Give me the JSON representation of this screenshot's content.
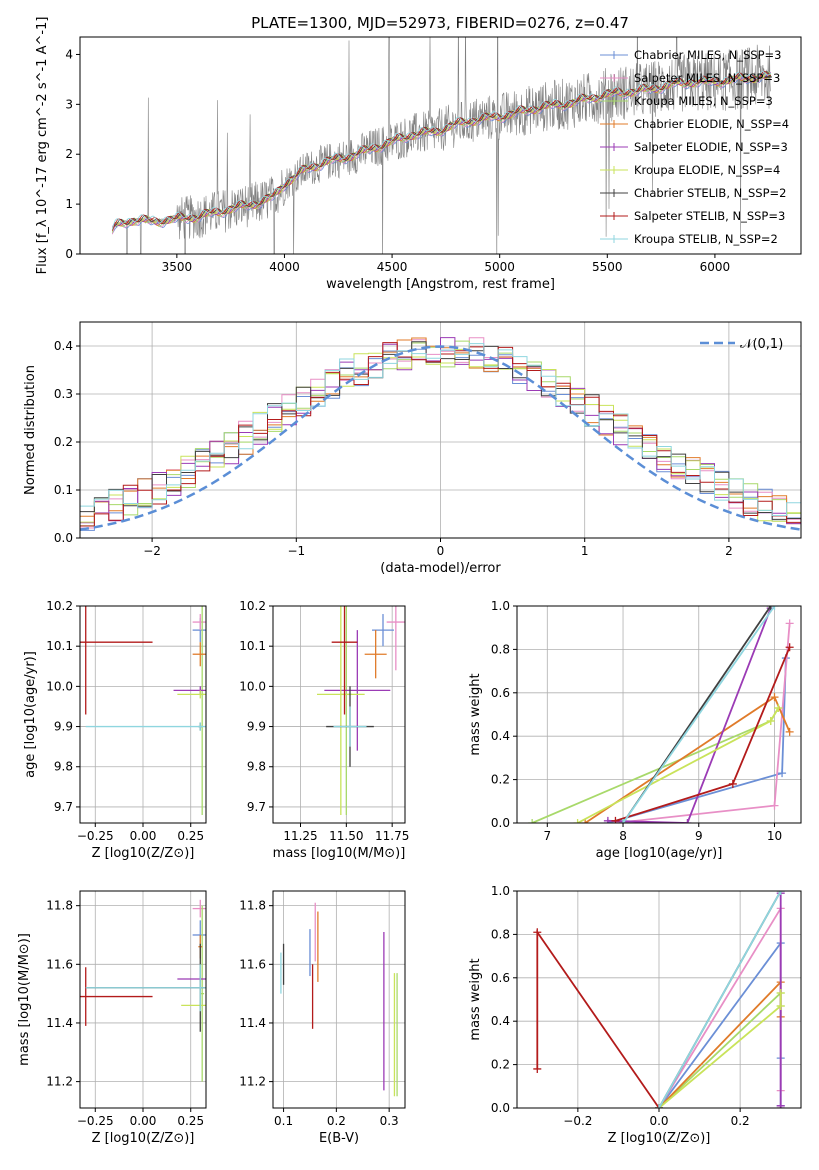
{
  "figure_title": "PLATE=1300, MJD=52973, FIBERID=0276, z=0.47",
  "colors": {
    "chabrier_miles": "#6b8fd6",
    "salpeter_miles": "#e88fc6",
    "kroupa_miles": "#a8d96a",
    "chabrier_elodie": "#e07b2a",
    "salpeter_elodie": "#9b3bb5",
    "kroupa_elodie": "#c9e35a",
    "chabrier_stelib": "#404040",
    "salpeter_stelib": "#b31b1b",
    "kroupa_stelib": "#8fd6df",
    "data": "#808080",
    "normal": "#5b8ed6"
  },
  "chart_data": [
    {
      "id": "spectrum",
      "type": "line",
      "xlabel": "wavelength [Angstrom, rest frame]",
      "ylabel": "Flux [f_λ 10^-17 erg cm^-2 s^-1 A^-1]",
      "xlim": [
        3050,
        6400
      ],
      "ylim": [
        0,
        4.35
      ],
      "xticks": [
        3500,
        4000,
        4500,
        5000,
        5500,
        6000
      ],
      "yticks": [
        0,
        1,
        2,
        3,
        4
      ],
      "grid": false,
      "legend_position": "top-right",
      "legend": [
        "Chabrier MILES, N_SSP=3",
        "Salpeter MILES, N_SSP=3",
        "Kroupa MILES, N_SSP=3",
        "Chabrier ELODIE, N_SSP=4",
        "Salpeter ELODIE, N_SSP=3",
        "Kroupa ELODIE, N_SSP=4",
        "Chabrier STELIB, N_SSP=2",
        "Salpeter STELIB, N_SSP=3",
        "Kroupa STELIB, N_SSP=2"
      ],
      "model_continuum": {
        "x": [
          3200,
          3210,
          3250,
          3300,
          3400,
          3500,
          3600,
          3700,
          3800,
          3900,
          3950,
          4000,
          4100,
          4200,
          4300,
          4400,
          4500,
          4600,
          4700,
          4800,
          4900,
          5000,
          5100,
          5200,
          5300,
          5400,
          5500,
          5600,
          5700,
          5800,
          5900,
          6000,
          6100,
          6200,
          6260
        ],
        "y": [
          0.45,
          0.55,
          0.62,
          0.68,
          0.65,
          0.7,
          0.75,
          0.85,
          0.95,
          1.05,
          1.15,
          1.4,
          1.7,
          1.85,
          1.95,
          2.1,
          2.25,
          2.4,
          2.45,
          2.6,
          2.7,
          2.75,
          2.85,
          2.95,
          3.0,
          3.1,
          3.2,
          3.25,
          3.3,
          3.4,
          3.45,
          3.45,
          3.5,
          3.55,
          3.55
        ]
      }
    },
    {
      "id": "residual_histogram",
      "type": "histogram",
      "xlabel": "(data-model)/error",
      "ylabel": "Normed distribution",
      "xlim": [
        -2.5,
        2.5
      ],
      "ylim": [
        0,
        0.45
      ],
      "xticks": [
        -2,
        -1,
        0,
        1,
        2
      ],
      "yticks": [
        0.0,
        0.1,
        0.2,
        0.3,
        0.4
      ],
      "grid": true,
      "legend_position": "top-right",
      "legend": [
        "𝒩(0,1)"
      ],
      "normal_curve": {
        "mean": 0,
        "sigma": 1
      },
      "bin_width": 0.1
    },
    {
      "id": "age_vs_Z",
      "type": "scatter",
      "xlabel": "Z [log10(Z/Z⊙)]",
      "ylabel": "age [log10(age/yr)]",
      "xlim": [
        -0.33,
        0.33
      ],
      "ylim": [
        9.66,
        10.2
      ],
      "xticks": [
        -0.25,
        0.0,
        0.25
      ],
      "yticks": [
        9.7,
        9.8,
        9.9,
        10.0,
        10.1,
        10.2
      ],
      "points": [
        {
          "model": "chabrier_miles",
          "x": 0.3,
          "y": 10.14,
          "xerr": 0.04,
          "yerr": 0.03
        },
        {
          "model": "salpeter_miles",
          "x": 0.3,
          "y": 10.16,
          "xerr": 0.04,
          "yerr": 0.02
        },
        {
          "model": "kroupa_miles",
          "x": 0.31,
          "y": 9.98,
          "xerr": 0.01,
          "yerr": 0.3
        },
        {
          "model": "chabrier_elodie",
          "x": 0.3,
          "y": 10.08,
          "xerr": 0.04,
          "yerr": 0.03
        },
        {
          "model": "salpeter_elodie",
          "x": 0.3,
          "y": 9.99,
          "xerr": 0.14,
          "yerr": 0.01
        },
        {
          "model": "kroupa_elodie",
          "x": 0.3,
          "y": 9.98,
          "xerr": 0.12,
          "yerr": 0.01
        },
        {
          "model": "chabrier_stelib",
          "x": 0.3,
          "y": 9.9,
          "xerr": 0.01,
          "yerr": 0.01
        },
        {
          "model": "salpeter_stelib",
          "x": -0.3,
          "y": 10.11,
          "xerr": 0.35,
          "yerr": 0.18
        },
        {
          "model": "kroupa_stelib",
          "x": 0.3,
          "y": 9.9,
          "xerr": 0.6,
          "yerr": 0.01
        }
      ]
    },
    {
      "id": "age_vs_mass",
      "type": "scatter",
      "xlabel": "mass [log10(M/M⊙)]",
      "ylabel": "",
      "xlim": [
        11.1,
        11.82
      ],
      "ylim": [
        9.66,
        10.2
      ],
      "xticks": [
        11.25,
        11.5,
        11.75
      ],
      "yticks": [
        9.7,
        9.8,
        9.9,
        10.0,
        10.1,
        10.2
      ],
      "points": [
        {
          "model": "chabrier_miles",
          "x": 11.7,
          "y": 10.14,
          "xerr": 0.06,
          "yerr": 0.04
        },
        {
          "model": "salpeter_miles",
          "x": 11.77,
          "y": 10.16,
          "xerr": 0.05,
          "yerr": 0.12
        },
        {
          "model": "kroupa_miles",
          "x": 11.5,
          "y": 9.98,
          "xerr": 0.03,
          "yerr": 0.3
        },
        {
          "model": "chabrier_elodie",
          "x": 11.66,
          "y": 10.08,
          "xerr": 0.06,
          "yerr": 0.06
        },
        {
          "model": "salpeter_elodie",
          "x": 11.56,
          "y": 9.99,
          "xerr": 0.18,
          "yerr": 0.15
        },
        {
          "model": "kroupa_elodie",
          "x": 11.47,
          "y": 9.98,
          "xerr": 0.13,
          "yerr": 0.3
        },
        {
          "model": "chabrier_stelib",
          "x": 11.52,
          "y": 9.9,
          "xerr": 0.13,
          "yerr": 0.1
        },
        {
          "model": "salpeter_stelib",
          "x": 11.49,
          "y": 10.11,
          "xerr": 0.07,
          "yerr": 0.18
        },
        {
          "model": "kroupa_stelib",
          "x": 11.52,
          "y": 9.9,
          "xerr": 0.09,
          "yerr": 0.05
        }
      ]
    },
    {
      "id": "weight_vs_age",
      "type": "line",
      "xlabel": "age [log10(age/yr)]",
      "ylabel": "mass weight",
      "xlim": [
        6.6,
        10.35
      ],
      "ylim": [
        0,
        1
      ],
      "xticks": [
        7,
        8,
        9,
        10
      ],
      "yticks": [
        0.0,
        0.2,
        0.4,
        0.6,
        0.8,
        1.0
      ],
      "grid": true,
      "series": [
        {
          "model": "chabrier_miles",
          "x": [
            7.8,
            10.1,
            10.15
          ],
          "y": [
            0.0,
            0.23,
            0.76
          ]
        },
        {
          "model": "salpeter_miles",
          "x": [
            7.9,
            10.0,
            10.2
          ],
          "y": [
            0.0,
            0.08,
            0.92
          ]
        },
        {
          "model": "kroupa_miles",
          "x": [
            6.8,
            9.95,
            10.05
          ],
          "y": [
            0.0,
            0.47,
            0.53
          ]
        },
        {
          "model": "chabrier_elodie",
          "x": [
            7.5,
            10.0,
            10.2
          ],
          "y": [
            0.0,
            0.58,
            0.42
          ]
        },
        {
          "model": "salpeter_elodie",
          "x": [
            7.8,
            8.85,
            9.95
          ],
          "y": [
            0.01,
            0.0,
            0.99
          ]
        },
        {
          "model": "kroupa_elodie",
          "x": [
            7.4,
            9.95,
            10.05
          ],
          "y": [
            0.0,
            0.47,
            0.53
          ]
        },
        {
          "model": "chabrier_stelib",
          "x": [
            8.0,
            9.95
          ],
          "y": [
            0.0,
            1.0
          ]
        },
        {
          "model": "salpeter_stelib",
          "x": [
            7.9,
            9.45,
            10.2
          ],
          "y": [
            0.01,
            0.18,
            0.81
          ]
        },
        {
          "model": "kroupa_stelib",
          "x": [
            8.0,
            10.0
          ],
          "y": [
            0.0,
            1.0
          ]
        }
      ]
    },
    {
      "id": "mass_vs_Z",
      "type": "scatter",
      "xlabel": "Z [log10(Z/Z⊙)]",
      "ylabel": "mass [log10(M/M⊙)]",
      "xlim": [
        -0.33,
        0.33
      ],
      "ylim": [
        11.11,
        11.85
      ],
      "xticks": [
        -0.25,
        0.0,
        0.25
      ],
      "yticks": [
        11.2,
        11.4,
        11.6,
        11.8
      ],
      "points": [
        {
          "model": "chabrier_miles",
          "x": 0.3,
          "y": 11.7,
          "xerr": 0.04,
          "yerr": 0.05
        },
        {
          "model": "salpeter_miles",
          "x": 0.3,
          "y": 11.79,
          "xerr": 0.04,
          "yerr": 0.03
        },
        {
          "model": "kroupa_miles",
          "x": 0.31,
          "y": 11.5,
          "xerr": 0.01,
          "yerr": 0.3
        },
        {
          "model": "chabrier_elodie",
          "x": 0.3,
          "y": 11.66,
          "xerr": 0.01,
          "yerr": 0.04
        },
        {
          "model": "salpeter_elodie",
          "x": 0.3,
          "y": 11.55,
          "xerr": 0.12,
          "yerr": 0.01
        },
        {
          "model": "kroupa_elodie",
          "x": 0.3,
          "y": 11.46,
          "xerr": 0.1,
          "yerr": 0.01
        },
        {
          "model": "chabrier_stelib",
          "x": 0.3,
          "y": 11.52,
          "xerr": 0.6,
          "yerr": 0.15
        },
        {
          "model": "salpeter_stelib",
          "x": -0.3,
          "y": 11.49,
          "xerr": 0.35,
          "yerr": 0.1
        },
        {
          "model": "kroupa_stelib",
          "x": 0.3,
          "y": 11.52,
          "xerr": 0.6,
          "yerr": 0.08
        }
      ]
    },
    {
      "id": "mass_vs_ebv",
      "type": "scatter",
      "xlabel": "E(B-V)",
      "ylabel": "",
      "xlim": [
        0.08,
        0.33
      ],
      "ylim": [
        11.11,
        11.85
      ],
      "xticks": [
        0.1,
        0.2,
        0.3
      ],
      "yticks": [
        11.2,
        11.4,
        11.6,
        11.8
      ],
      "points": [
        {
          "model": "chabrier_miles",
          "x": 0.15,
          "y": 11.64,
          "yerr": 0.08
        },
        {
          "model": "salpeter_miles",
          "x": 0.16,
          "y": 11.71,
          "yerr": 0.1
        },
        {
          "model": "kroupa_miles",
          "x": 0.315,
          "y": 11.36,
          "yerr": 0.21
        },
        {
          "model": "chabrier_elodie",
          "x": 0.165,
          "y": 11.66,
          "yerr": 0.12
        },
        {
          "model": "salpeter_elodie",
          "x": 0.29,
          "y": 11.44,
          "yerr": 0.27
        },
        {
          "model": "kroupa_elodie",
          "x": 0.31,
          "y": 11.36,
          "yerr": 0.21
        },
        {
          "model": "chabrier_stelib",
          "x": 0.1,
          "y": 11.6,
          "yerr": 0.07
        },
        {
          "model": "salpeter_stelib",
          "x": 0.155,
          "y": 11.49,
          "yerr": 0.11
        },
        {
          "model": "kroupa_stelib",
          "x": 0.095,
          "y": 11.57,
          "yerr": 0.07
        }
      ]
    },
    {
      "id": "weight_vs_Z",
      "type": "line",
      "xlabel": "Z [log10(Z/Z⊙)]",
      "ylabel": "mass weight",
      "xlim": [
        -0.35,
        0.35
      ],
      "ylim": [
        0,
        1
      ],
      "xticks": [
        -0.2,
        0.0,
        0.2
      ],
      "yticks": [
        0.0,
        0.2,
        0.4,
        0.6,
        0.8,
        1.0
      ],
      "grid": true,
      "series": [
        {
          "model": "chabrier_miles",
          "x": [
            0.0,
            0.3,
            0.3,
            0.3
          ],
          "y": [
            0.0,
            0.76,
            0.23,
            0.01
          ]
        },
        {
          "model": "salpeter_miles",
          "x": [
            0.0,
            0.3,
            0.3
          ],
          "y": [
            0.0,
            0.92,
            0.08
          ]
        },
        {
          "model": "kroupa_miles",
          "x": [
            0.0,
            0.3,
            0.3
          ],
          "y": [
            0.0,
            0.53,
            0.47
          ]
        },
        {
          "model": "chabrier_elodie",
          "x": [
            0.0,
            0.3,
            0.3
          ],
          "y": [
            0.0,
            0.58,
            0.42
          ]
        },
        {
          "model": "salpeter_elodie",
          "x": [
            0.3,
            0.3,
            0.3
          ],
          "y": [
            0.99,
            0.01,
            0.0
          ]
        },
        {
          "model": "kroupa_elodie",
          "x": [
            0.0,
            0.3,
            0.3
          ],
          "y": [
            0.0,
            0.47,
            0.53
          ]
        },
        {
          "model": "chabrier_stelib",
          "x": [
            0.0,
            0.3
          ],
          "y": [
            0.0,
            1.0
          ]
        },
        {
          "model": "salpeter_stelib",
          "x": [
            -0.3,
            -0.3,
            0.0
          ],
          "y": [
            0.18,
            0.81,
            0.0
          ]
        },
        {
          "model": "kroupa_stelib",
          "x": [
            0.0,
            0.3
          ],
          "y": [
            0.0,
            1.0
          ]
        }
      ]
    }
  ]
}
